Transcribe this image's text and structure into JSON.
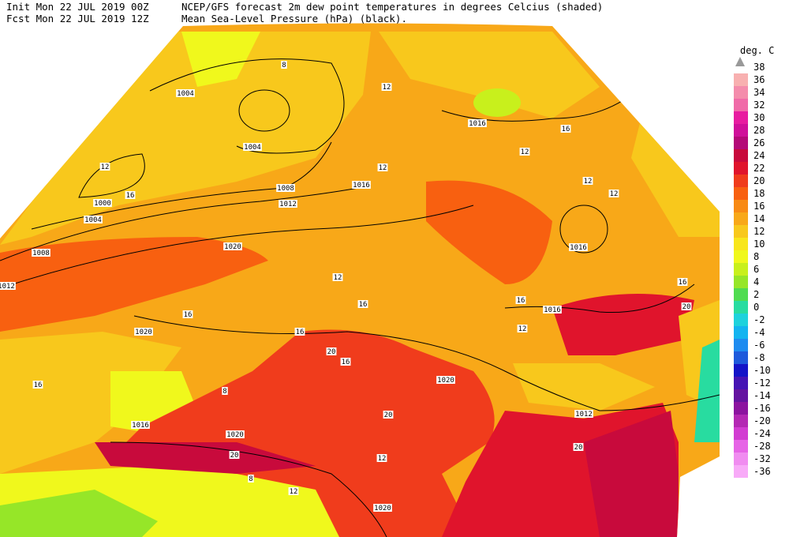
{
  "header": {
    "init": "Init  Mon 22 JUL 2019 00Z",
    "fcst": "Fcst Mon 22 JUL 2019 12Z",
    "title_line1": "NCEP/GFS forecast 2m dew point temperatures in degrees Celcius (shaded)",
    "title_line2": "Mean Sea-Level Pressure (hPa) (black)."
  },
  "legend": {
    "unit": "deg. C",
    "max_label": "38",
    "levels": [
      {
        "label": "36",
        "color": "#f8b0b0"
      },
      {
        "label": "34",
        "color": "#f48cac"
      },
      {
        "label": "32",
        "color": "#f06aa8"
      },
      {
        "label": "30",
        "color": "#e81ca0"
      },
      {
        "label": "28",
        "color": "#d0109a"
      },
      {
        "label": "26",
        "color": "#b40a78"
      },
      {
        "label": "24",
        "color": "#c80a3c"
      },
      {
        "label": "22",
        "color": "#e0142c"
      },
      {
        "label": "20",
        "color": "#f03c1c"
      },
      {
        "label": "18",
        "color": "#f86010"
      },
      {
        "label": "16",
        "color": "#f88a14"
      },
      {
        "label": "14",
        "color": "#f8a818"
      },
      {
        "label": "12",
        "color": "#f8c81c"
      },
      {
        "label": "10",
        "color": "#f8e61c"
      },
      {
        "label": "8",
        "color": "#f0f81c"
      },
      {
        "label": "6",
        "color": "#c8f01c"
      },
      {
        "label": "4",
        "color": "#96e628"
      },
      {
        "label": "2",
        "color": "#50dc50"
      },
      {
        "label": "0",
        "color": "#28dca0"
      },
      {
        "label": "-2",
        "color": "#1ed2dc"
      },
      {
        "label": "-4",
        "color": "#14b4f0"
      },
      {
        "label": "-6",
        "color": "#1e8cf0"
      },
      {
        "label": "-8",
        "color": "#1e5adc"
      },
      {
        "label": "-10",
        "color": "#1414c8"
      },
      {
        "label": "-12",
        "color": "#4614b4"
      },
      {
        "label": "-14",
        "color": "#6414a0"
      },
      {
        "label": "-16",
        "color": "#8c14a0"
      },
      {
        "label": "-20",
        "color": "#b428b4"
      },
      {
        "label": "-24",
        "color": "#d23cd2"
      },
      {
        "label": "-28",
        "color": "#e664e6"
      },
      {
        "label": "-32",
        "color": "#f08cf0"
      },
      {
        "label": "-36",
        "color": "#f8aaf8"
      }
    ]
  },
  "map": {
    "isobar_labels": [
      "1004",
      "1004",
      "1000",
      "1004",
      "1008",
      "1012",
      "1016",
      "1016",
      "1020",
      "1008",
      "1012",
      "1016",
      "1016",
      "1020",
      "1016",
      "1020",
      "1020",
      "1012",
      "1020"
    ],
    "dewpoint_labels": [
      "12",
      "16",
      "12",
      "12",
      "16",
      "12",
      "12",
      "12",
      "12",
      "16",
      "16",
      "16",
      "16",
      "20",
      "16",
      "20",
      "16",
      "12",
      "16",
      "12",
      "20",
      "20",
      "20",
      "8",
      "8",
      "8",
      "12"
    ]
  }
}
